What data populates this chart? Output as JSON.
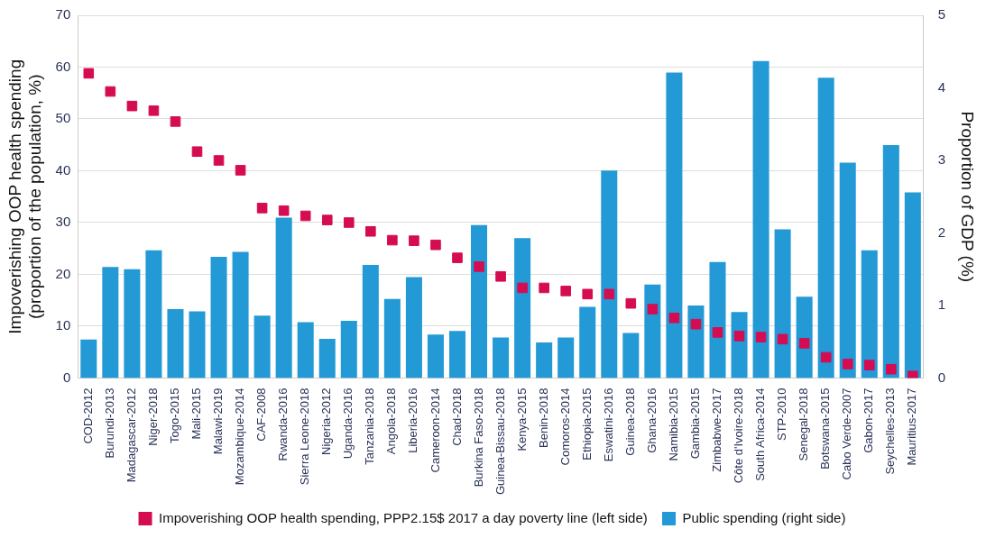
{
  "chart_data": {
    "type": "bar",
    "ylabel": "Impoverishing OOP health spending\n(proportion of the population, %)",
    "y2label": "Proportion of GDP (%)",
    "categories": [
      "COD-2012",
      "Burundi-2013",
      "Madagascar-2012",
      "Niger-2018",
      "Togo-2015",
      "Mali-2015",
      "Malawi-2019",
      "Mozambique-2014",
      "CAF-2008",
      "Rwanda-2016",
      "Sierra Leone-2018",
      "Nigeria-2012",
      "Uganda-2016",
      "Tanzania-2018",
      "Angola-2018",
      "Liberia-2016",
      "Cameroon-2014",
      "Chad-2018",
      "Burkina Faso-2018",
      "Guinea-Bissau-2018",
      "Kenya-2015",
      "Benin-2018",
      "Comoros-2014",
      "Ethiopia-2015",
      "Eswatini-2016",
      "Guinea-2018",
      "Ghana-2016",
      "Namibia-2015",
      "Gambia-2015",
      "Zimbabwe-2017",
      "Côte d'Ivoire-2018",
      "South Africa-2014",
      "STP-2010",
      "Senegal-2018",
      "Botswana-2015",
      "Cabo Verde-2007",
      "Gabon-2017",
      "Seychelles-2013",
      "Mauritius-2017"
    ],
    "series": [
      {
        "name": "Impoverishing OOP health spending, PPP2.15$ 2017 a day poverty line (left side)",
        "type": "scatter",
        "marker": "square",
        "color": "#d50c52",
        "x": [
          "COD-2012",
          "Burundi-2013",
          "Madagascar-2012",
          "Niger-2018",
          "Togo-2015",
          "Mali-2015",
          "Malawi-2019",
          "Mozambique-2014",
          "CAF-2008",
          "Rwanda-2016",
          "Sierra Leone-2018",
          "Nigeria-2012",
          "Uganda-2016",
          "Tanzania-2018",
          "Angola-2018",
          "Liberia-2016",
          "Cameroon-2014",
          "Chad-2018",
          "Burkina Faso-2018",
          "Guinea-Bissau-2018",
          "Kenya-2015",
          "Benin-2018",
          "Comoros-2014",
          "Ethiopia-2015",
          "Eswatini-2016",
          "Guinea-2018",
          "Ghana-2016",
          "Namibia-2015",
          "Gambia-2015",
          "Zimbabwe-2017",
          "Côte d'Ivoire-2018",
          "South Africa-2014",
          "STP-2010",
          "Senegal-2018",
          "Botswana-2015",
          "Cabo Verde-2007",
          "Gabon-2017",
          "Seychelles-2013",
          "Mauritius-2017"
        ],
        "values": [
          58.8,
          55.3,
          52.5,
          51.6,
          49.5,
          43.7,
          42.0,
          40.1,
          32.8,
          32.3,
          31.3,
          30.5,
          30.0,
          28.3,
          26.6,
          26.5,
          25.7,
          23.2,
          21.5,
          19.6,
          17.4,
          17.4,
          16.8,
          16.2,
          16.2,
          14.4,
          13.3,
          11.6,
          10.4,
          8.8,
          8.1,
          7.9,
          7.5,
          6.7,
          4.0,
          2.7,
          2.5,
          1.7,
          0.4
        ]
      },
      {
        "name": "Public spending (right side)",
        "axis": "y2",
        "color": "#2399d6",
        "values": [
          0.53,
          1.53,
          1.5,
          1.76,
          0.95,
          0.92,
          1.67,
          1.74,
          0.86,
          2.21,
          0.77,
          0.54,
          0.79,
          1.56,
          1.09,
          1.39,
          0.6,
          0.65,
          2.11,
          0.56,
          1.93,
          0.49,
          0.56,
          0.98,
          2.86,
          0.62,
          1.29,
          4.21,
          1.0,
          1.6,
          0.91,
          4.37,
          2.05,
          1.12,
          4.14,
          2.97,
          1.76,
          3.21,
          2.56
        ]
      }
    ],
    "ylim": [
      0,
      70
    ],
    "yticks": [
      0,
      10,
      20,
      30,
      40,
      50,
      60,
      70
    ],
    "y2lim": [
      0,
      5
    ],
    "y2ticks": [
      0,
      1,
      2,
      3,
      4,
      5
    ],
    "grid": "y",
    "legend": "bottom"
  }
}
